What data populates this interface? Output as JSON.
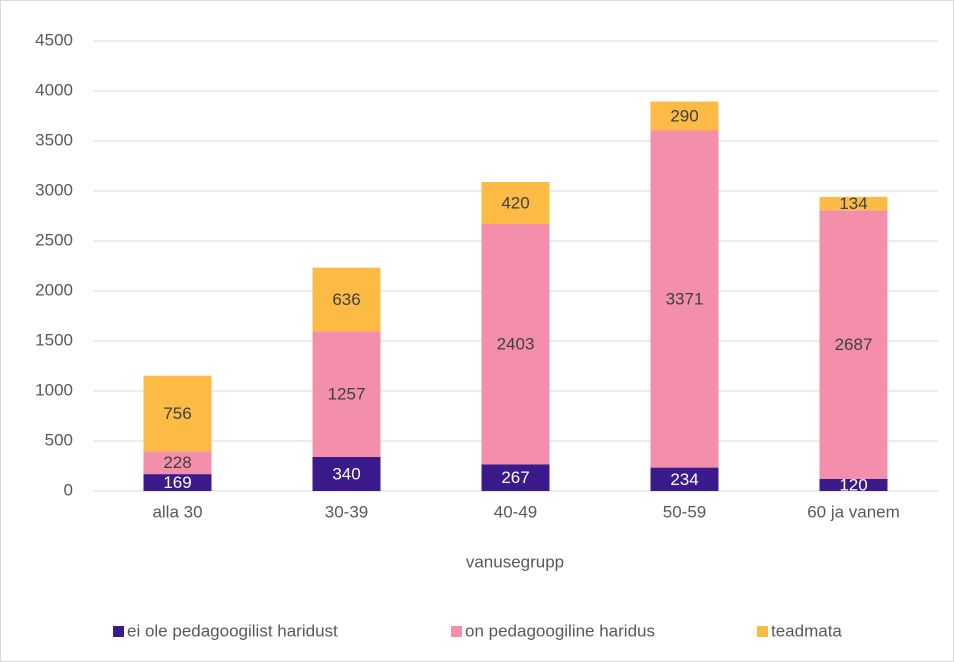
{
  "chart_data": {
    "type": "stacked_bar",
    "x_label": "vanusegrupp",
    "categories": [
      "alla 30",
      "30-39",
      "40-49",
      "50-59",
      "60 ja vanem"
    ],
    "series": [
      {
        "name": "ei ole pedagoogilist haridust",
        "color": "#3b1a8c",
        "values": [
          169,
          340,
          267,
          234,
          120
        ]
      },
      {
        "name": "on pedagoogiline haridus",
        "color": "#f48fab",
        "values": [
          228,
          1257,
          2403,
          3371,
          2687
        ]
      },
      {
        "name": "teadmata",
        "color": "#fbbb45",
        "values": [
          756,
          636,
          420,
          290,
          134
        ]
      }
    ],
    "ylim": [
      0,
      4500
    ],
    "yticks": [
      0,
      500,
      1000,
      1500,
      2000,
      2500,
      3000,
      3500,
      4000,
      4500
    ],
    "grid": true,
    "legend": "bottom"
  }
}
